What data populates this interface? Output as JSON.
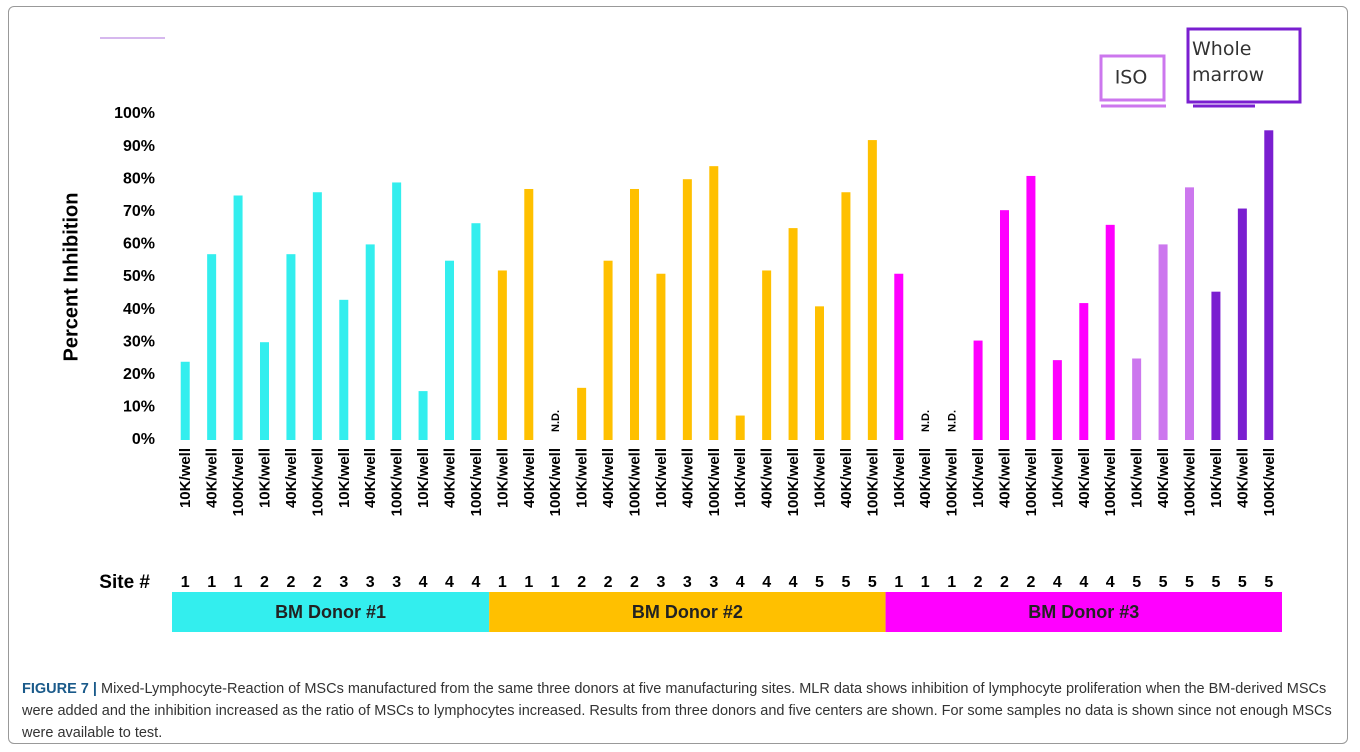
{
  "chart_data": {
    "type": "bar",
    "ylabel": "Percent Inhibition",
    "ylim": [
      0,
      100
    ],
    "yticks": [
      {
        "value": 0,
        "label": "0%"
      },
      {
        "value": 10,
        "label": "10%"
      },
      {
        "value": 20,
        "label": "20%"
      },
      {
        "value": 30,
        "label": "30%"
      },
      {
        "value": 40,
        "label": "40%"
      },
      {
        "value": 50,
        "label": "50%"
      },
      {
        "value": 60,
        "label": "60%"
      },
      {
        "value": 70,
        "label": "70%"
      },
      {
        "value": 80,
        "label": "80%"
      },
      {
        "value": 90,
        "label": "90%"
      },
      {
        "value": 100,
        "label": "100%"
      }
    ],
    "site_label": "Site #",
    "legend": [
      {
        "name": "ISO",
        "color": "#cc77ee"
      },
      {
        "name": "Whole marrow",
        "color": "#7a1fd0"
      }
    ],
    "series": [
      {
        "name": "BM Donor #1",
        "color": "#33eeee",
        "categories": [
          "10K/well",
          "40K/well",
          "100K/well",
          "10K/well",
          "40K/well",
          "100K/well",
          "10K/well",
          "40K/well",
          "100K/well",
          "10K/well",
          "40K/well",
          "100K/well"
        ],
        "sites": [
          1,
          1,
          1,
          2,
          2,
          2,
          3,
          3,
          3,
          4,
          4,
          4
        ],
        "values": [
          24,
          57,
          75,
          30,
          57,
          76,
          43,
          60,
          79,
          15,
          55,
          66.5
        ]
      },
      {
        "name": "BM Donor #2",
        "color": "#ffc000",
        "categories": [
          "10K/well",
          "40K/well",
          "100K/well",
          "10K/well",
          "40K/well",
          "100K/well",
          "10K/well",
          "40K/well",
          "100K/well",
          "10K/well",
          "40K/well",
          "100K/well",
          "10K/well",
          "40K/well",
          "100K/well"
        ],
        "sites": [
          1,
          1,
          1,
          2,
          2,
          2,
          3,
          3,
          3,
          4,
          4,
          4,
          5,
          5,
          5
        ],
        "values": [
          52,
          77,
          null,
          16,
          55,
          77,
          51,
          80,
          84,
          7.5,
          52,
          65,
          41,
          76,
          92
        ],
        "value_labels": [
          null,
          null,
          "N.D.",
          null,
          null,
          null,
          null,
          null,
          null,
          null,
          null,
          null,
          null,
          null,
          null
        ]
      },
      {
        "name": "BM Donor #3",
        "color": "#ff00ff",
        "categories": [
          "10K/well",
          "40K/well",
          "100K/well",
          "10K/well",
          "40K/well",
          "100K/well",
          "10K/well",
          "40K/well",
          "100K/well",
          "10K/well",
          "40K/well",
          "100K/well",
          "10K/well",
          "40K/well",
          "100K/well"
        ],
        "sites": [
          1,
          1,
          1,
          2,
          2,
          2,
          4,
          4,
          4,
          5,
          5,
          5,
          5,
          5,
          5
        ],
        "values": [
          51,
          null,
          null,
          30.5,
          70.5,
          81,
          24.5,
          42,
          66,
          25,
          60,
          77.5,
          45.5,
          71,
          95
        ],
        "value_labels": [
          null,
          "N.D.",
          "N.D.",
          null,
          null,
          null,
          null,
          null,
          null,
          null,
          null,
          null,
          null,
          null,
          null
        ],
        "bar_colors": [
          "#ff00ff",
          "#ff00ff",
          "#ff00ff",
          "#ff00ff",
          "#ff00ff",
          "#ff00ff",
          "#ff00ff",
          "#ff00ff",
          "#ff00ff",
          "#cc77ee",
          "#cc77ee",
          "#cc77ee",
          "#7a1fd0",
          "#7a1fd0",
          "#7a1fd0"
        ]
      }
    ],
    "caption": {
      "label": "FIGURE 7 |",
      "text": "Mixed-Lymphocyte-Reaction of MSCs manufactured from the same three donors at five manufacturing sites. MLR data shows inhibition of lymphocyte proliferation when the BM-derived MSCs were added and the inhibition increased as the ratio of MSCs to lymphocytes increased. Results from three donors and five centers are shown. For some samples no data is shown since not enough MSCs were available to test."
    }
  }
}
